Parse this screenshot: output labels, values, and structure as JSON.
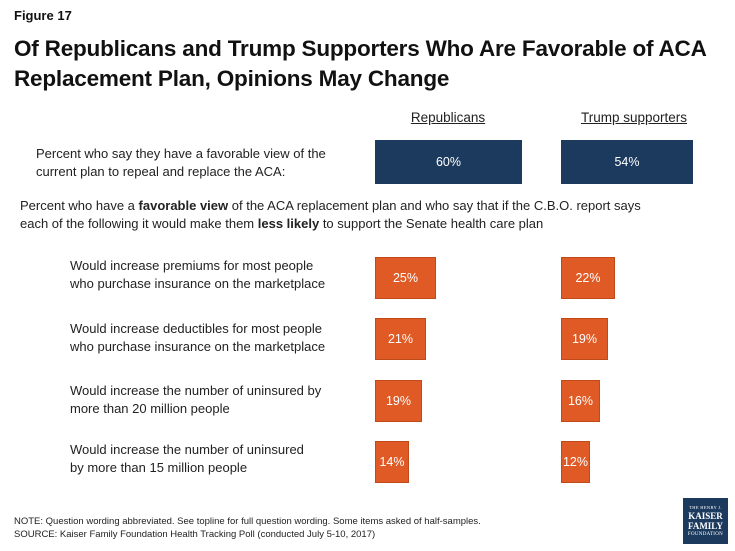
{
  "figure_label": "Figure 17",
  "title": "Of Republicans and Trump Supporters Who Are Favorable of ACA Replacement Plan, Opinions May Change",
  "columns": [
    "Republicans",
    "Trump supporters"
  ],
  "intro": {
    "part1": "Percent who have a ",
    "bold1": "favorable view",
    "part2": " of the ACA replacement plan and who say that if the C.B.O. report says each of the following it would make them ",
    "bold2": "less likely",
    "part3": " to support the Senate health care plan"
  },
  "chart_data": {
    "type": "bar",
    "series_names": [
      "Republicans",
      "Trump supporters"
    ],
    "rows": [
      {
        "label_line1": "Percent who say they have a favorable view of the",
        "label_line2": "current plan to repeal and replace the ACA:",
        "values": [
          60,
          54
        ],
        "display": [
          "60%",
          "54%"
        ],
        "color": "#1c3a5e"
      },
      {
        "label_line1": "Would increase premiums for most people",
        "label_line2": "who purchase insurance on the marketplace",
        "values": [
          25,
          22
        ],
        "display": [
          "25%",
          "22%"
        ],
        "color": "#e05a26"
      },
      {
        "label_line1": "Would increase deductibles for most people",
        "label_line2": "who purchase insurance on the marketplace",
        "values": [
          21,
          19
        ],
        "display": [
          "21%",
          "19%"
        ],
        "color": "#e05a26"
      },
      {
        "label_line1": "Would increase the number of uninsured by",
        "label_line2": "more than 20 million people",
        "values": [
          19,
          16
        ],
        "display": [
          "19%",
          "16%"
        ],
        "color": "#e05a26"
      },
      {
        "label_line1": "Would increase the number of uninsured",
        "label_line2": "by more than 15 million people",
        "values": [
          14,
          12
        ],
        "display": [
          "14%",
          "12%"
        ],
        "color": "#e05a26"
      }
    ]
  },
  "footnote": {
    "note": "NOTE: Question wording abbreviated. See topline for full question wording. Some items asked of half-samples.",
    "source": "SOURCE: Kaiser Family Foundation Health Tracking Poll (conducted July 5-10, 2017)"
  },
  "logo": {
    "line1": "THE HENRY J.",
    "line2": "KAISER",
    "line3": "FAMILY",
    "line4": "FOUNDATION"
  }
}
